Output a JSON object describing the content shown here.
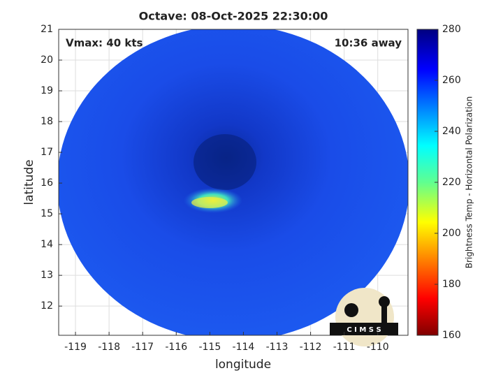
{
  "chart_data": {
    "type": "image",
    "title": "Octave: 08-Oct-2025 22:30:00",
    "x_label": "longitude",
    "y_label": "latitude",
    "annotations": [
      "Vmax: 40 kts",
      "10:36 away"
    ],
    "xlim": [
      -119.5,
      -109.1
    ],
    "xticks": [
      -119,
      -118,
      -117,
      -116,
      -115,
      -114,
      -113,
      -112,
      -111,
      -110
    ],
    "ylim": [
      11.05,
      21
    ],
    "yticks": [
      12,
      13,
      14,
      15,
      16,
      17,
      18,
      19,
      20,
      21
    ],
    "grid": true,
    "colorbar": {
      "label": "Brightness Temp - Horizontal Polarization",
      "lim": [
        160,
        280
      ],
      "ticks": [
        160,
        180,
        200,
        220,
        240,
        260,
        280
      ]
    },
    "logo": "C I M S S"
  }
}
